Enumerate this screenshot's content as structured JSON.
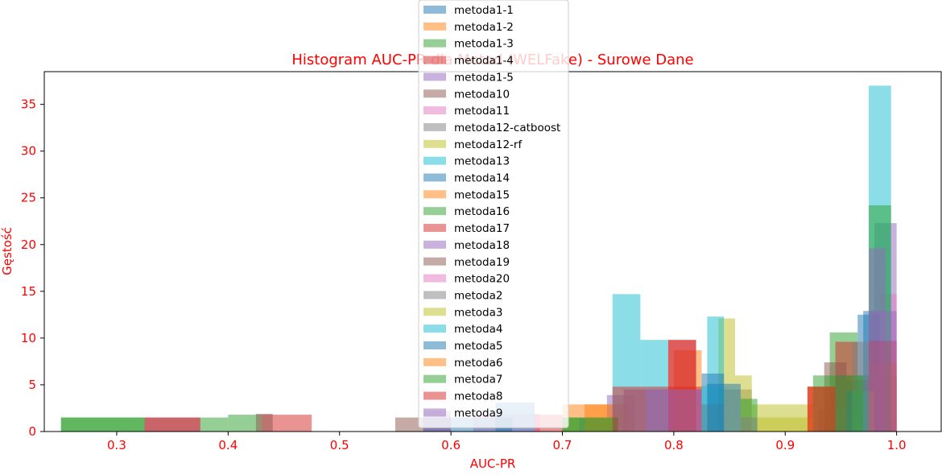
{
  "chart_data": {
    "type": "histogram",
    "title": "Histogram AUC-PR dla Metod (WELFake) - Surowe Dane",
    "xlabel": "AUC-PR",
    "ylabel": "Gęstość",
    "xlim": [
      0.235,
      1.04
    ],
    "ylim": [
      0,
      38.5
    ],
    "xticks": [
      "0.3",
      "0.4",
      "0.5",
      "0.6",
      "0.7",
      "0.8",
      "0.9",
      "1.0"
    ],
    "yticks": [
      "0",
      "5",
      "10",
      "15",
      "20",
      "25",
      "30",
      "35"
    ],
    "label_color": "#ff0000",
    "bar_opacity": 0.5,
    "grid": false,
    "legend_position": "top-center",
    "series": [
      {
        "name": "metoda1-1",
        "color": "#1f77b4",
        "bins": [
          [
            0.97,
            0.985,
            12.9
          ],
          [
            0.985,
            1.0,
            6.0
          ]
        ]
      },
      {
        "name": "metoda1-2",
        "color": "#ff7f0e",
        "bins": [
          [
            0.7,
            0.73,
            2.9
          ],
          [
            0.73,
            0.76,
            2.9
          ],
          [
            0.975,
            1.0,
            1.4
          ]
        ]
      },
      {
        "name": "metoda1-3",
        "color": "#2ca02c",
        "bins": [
          [
            0.4,
            0.43,
            1.8
          ],
          [
            0.94,
            0.965,
            10.6
          ],
          [
            0.965,
            1.0,
            6.0
          ]
        ]
      },
      {
        "name": "metoda1-4",
        "color": "#d62728",
        "bins": [
          [
            0.43,
            0.475,
            1.8
          ],
          [
            0.945,
            0.965,
            9.6
          ]
        ]
      },
      {
        "name": "metoda1-5",
        "color": "#9467bd",
        "bins": [
          [
            0.715,
            0.74,
            1.4
          ],
          [
            0.74,
            0.765,
            3.9
          ],
          [
            0.98,
            1.0,
            22.3
          ]
        ]
      },
      {
        "name": "metoda10",
        "color": "#8c564b",
        "bins": [
          [
            0.55,
            0.6,
            1.5
          ],
          [
            0.935,
            0.955,
            7.4
          ],
          [
            0.955,
            0.975,
            5.5
          ]
        ]
      },
      {
        "name": "metoda11",
        "color": "#e377c2",
        "bins": [
          [
            0.62,
            0.68,
            1.9
          ],
          [
            0.985,
            1.0,
            14.7
          ]
        ]
      },
      {
        "name": "metoda12-catboost",
        "color": "#7f7f7f",
        "bins": [
          [
            0.84,
            0.87,
            4.5
          ],
          [
            0.93,
            0.965,
            2.4
          ]
        ]
      },
      {
        "name": "metoda12-rf",
        "color": "#bcbd22",
        "bins": [
          [
            0.84,
            0.855,
            12.1
          ],
          [
            0.855,
            0.87,
            6.0
          ],
          [
            0.87,
            0.925,
            2.9
          ]
        ]
      },
      {
        "name": "metoda13",
        "color": "#17becf",
        "bins": [
          [
            0.975,
            0.995,
            37.0
          ],
          [
            0.83,
            0.845,
            12.3
          ]
        ]
      },
      {
        "name": "metoda14",
        "color": "#1f77b4",
        "bins": [
          [
            0.575,
            0.655,
            1.5
          ],
          [
            0.965,
            0.985,
            12.5
          ],
          [
            0.825,
            0.845,
            6.2
          ]
        ]
      },
      {
        "name": "metoda15",
        "color": "#ff7f0e",
        "bins": [
          [
            0.8,
            0.825,
            8.7
          ],
          [
            0.975,
            1.0,
            7.3
          ]
        ]
      },
      {
        "name": "metoda16",
        "color": "#2ca02c",
        "bins": [
          [
            0.25,
            0.325,
            1.5
          ],
          [
            0.325,
            0.4,
            1.5
          ],
          [
            0.7,
            0.75,
            1.5
          ],
          [
            0.975,
            0.995,
            24.2
          ],
          [
            0.86,
            0.875,
            3.5
          ]
        ]
      },
      {
        "name": "metoda17",
        "color": "#d62728",
        "bins": [
          [
            0.675,
            0.7,
            1.8
          ],
          [
            0.795,
            0.82,
            9.8
          ],
          [
            0.92,
            0.945,
            4.8
          ]
        ]
      },
      {
        "name": "metoda18",
        "color": "#9467bd",
        "bins": [
          [
            0.975,
            0.99,
            19.6
          ],
          [
            0.755,
            0.825,
            4.5
          ]
        ]
      },
      {
        "name": "metoda19",
        "color": "#8c564b",
        "bins": [
          [
            0.425,
            0.44,
            1.9
          ],
          [
            0.825,
            0.845,
            2.9
          ],
          [
            0.945,
            0.965,
            6.0
          ]
        ]
      },
      {
        "name": "metoda20",
        "color": "#e377c2",
        "bins": [
          [
            0.325,
            0.375,
            1.5
          ],
          [
            0.755,
            0.775,
            4.5
          ]
        ]
      },
      {
        "name": "metoda2",
        "color": "#7f7f7f",
        "bins": [
          [
            0.86,
            0.875,
            1.5
          ],
          [
            0.96,
            0.98,
            9.6
          ]
        ]
      },
      {
        "name": "metoda3",
        "color": "#bcbd22",
        "bins": [
          [
            0.875,
            0.925,
            1.5
          ],
          [
            0.96,
            0.98,
            4.3
          ]
        ]
      },
      {
        "name": "metoda4",
        "color": "#17becf",
        "bins": [
          [
            0.745,
            0.77,
            14.7
          ],
          [
            0.77,
            0.795,
            9.8
          ],
          [
            0.825,
            0.845,
            4.9
          ]
        ]
      },
      {
        "name": "metoda5",
        "color": "#1f77b4",
        "bins": [
          [
            0.64,
            0.675,
            3.1
          ],
          [
            0.83,
            0.86,
            5.1
          ],
          [
            0.955,
            0.975,
            4.3
          ]
        ]
      },
      {
        "name": "metoda6",
        "color": "#ff7f0e",
        "bins": [
          [
            0.72,
            0.745,
            2.9
          ],
          [
            0.8,
            0.82,
            4.8
          ],
          [
            0.92,
            0.945,
            4.8
          ]
        ]
      },
      {
        "name": "metoda7",
        "color": "#2ca02c",
        "bins": [
          [
            0.25,
            0.325,
            1.5
          ],
          [
            0.7,
            0.75,
            1.5
          ],
          [
            0.925,
            0.97,
            6.0
          ]
        ]
      },
      {
        "name": "metoda8",
        "color": "#d62728",
        "bins": [
          [
            0.325,
            0.375,
            1.5
          ],
          [
            0.745,
            0.825,
            4.8
          ],
          [
            0.795,
            0.82,
            9.8
          ],
          [
            0.92,
            0.945,
            4.8
          ],
          [
            0.975,
            1.0,
            9.7
          ]
        ]
      },
      {
        "name": "metoda9",
        "color": "#9467bd",
        "bins": [
          [
            0.575,
            0.6,
            2.2
          ],
          [
            0.775,
            0.825,
            4.5
          ],
          [
            0.975,
            1.0,
            12.9
          ]
        ]
      }
    ]
  }
}
